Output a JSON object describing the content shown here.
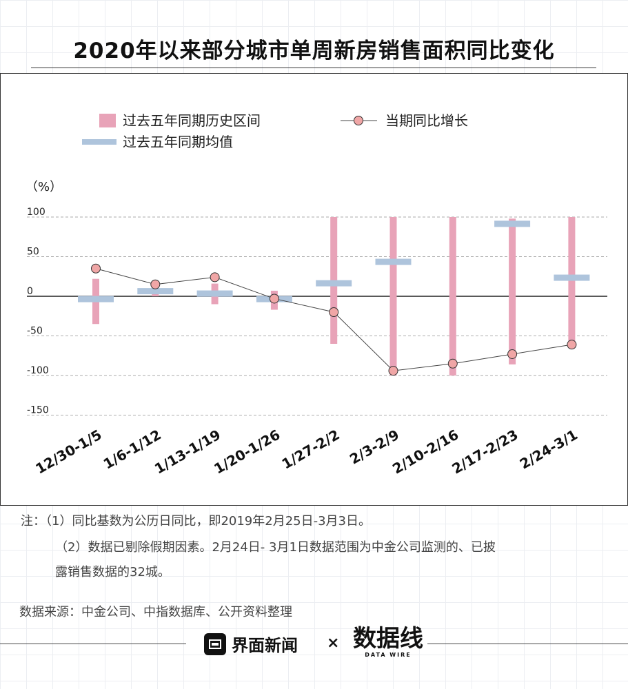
{
  "title": "2020年以来部分城市单周新房销售面积同比变化",
  "colors": {
    "range_bar": "#e8a3b8",
    "mean_bar": "#aec4dc",
    "point_fill": "#f0a6a6",
    "line": "#444444",
    "grid": "#aaaaaa"
  },
  "chart_data": {
    "type": "bar",
    "title": "2020年以来部分城市单周新房销售面积同比变化",
    "ylabel": "（%）",
    "ylim": [
      -150,
      100
    ],
    "yticks": [
      "100",
      "50",
      "0",
      "-50",
      "-100",
      "-150"
    ],
    "ytick_values": [
      100,
      50,
      0,
      -50,
      -100,
      -150
    ],
    "grid": "horizontal dashed",
    "legend_position": "top",
    "categories": [
      "12/30-1/5",
      "1/6-1/12",
      "1/13-1/19",
      "1/20-1/26",
      "1/27-2/2",
      "2/3-2/9",
      "2/10-2/16",
      "2/17-2/23",
      "2/24-3/1"
    ],
    "series": [
      {
        "name": "过去五年同期历史区间",
        "kind": "range",
        "low": [
          -35,
          0,
          -10,
          -17,
          -60,
          -100,
          -100,
          -86,
          -60
        ],
        "high": [
          22,
          10,
          16,
          7,
          100,
          100,
          100,
          98,
          100
        ]
      },
      {
        "name": "过去五年同期均值",
        "kind": "mean",
        "values": [
          -4,
          6,
          3,
          -4,
          16,
          43,
          null,
          91,
          23
        ]
      },
      {
        "name": "当期同比增长",
        "kind": "line",
        "values": [
          35,
          15,
          24,
          -3,
          -20,
          -94,
          -85,
          -73,
          -61
        ]
      }
    ]
  },
  "notes": {
    "line1": "注：（1）同比基数为公历日同比，即2019年2月25日-3月3日。",
    "line2": "（2）数据已剔除假期因素。2月24日- 3月1日数据范围为中金公司监测的、已披",
    "line3": "露销售数据的32城。"
  },
  "source": "数据来源：中金公司、中指数据库、公开资料整理",
  "footer": {
    "brand1": "界面新闻",
    "cross": "×",
    "brand2": "数据线",
    "brand2_sub": "DATA WIRE"
  }
}
